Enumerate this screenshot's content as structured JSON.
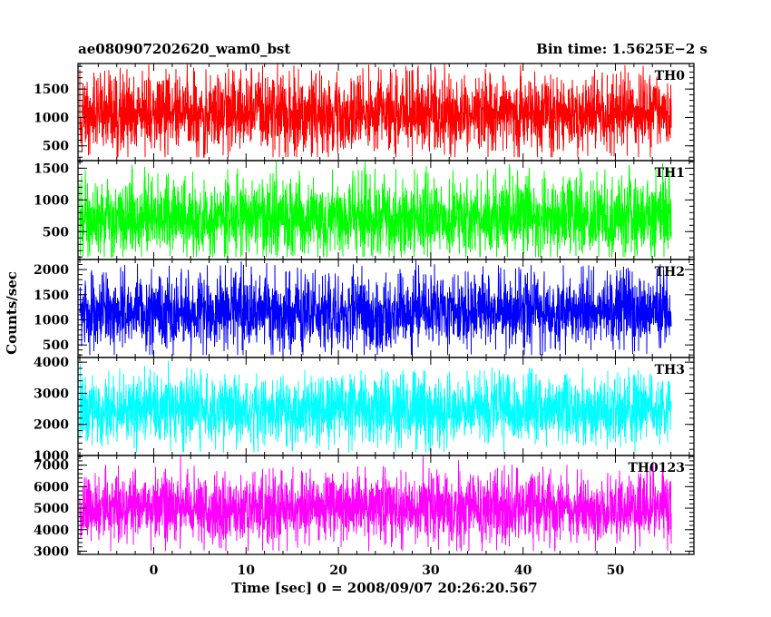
{
  "title_left": "ae080907202620_wam0_bst",
  "title_right": "Bin time: 1.5625E−2 s",
  "ylabel": "Counts/sec",
  "xlabel": "Time [sec] 0 = 2008/09/07 20:26:20.567",
  "chart_data": {
    "type": "line",
    "xlim": [
      -8.2,
      58.5
    ],
    "x_range_data": [
      -8,
      56
    ],
    "bin_time": 0.015625,
    "x_ticks": [
      0,
      10,
      20,
      30,
      40,
      50
    ],
    "x_tick_labels": [
      "0",
      "10",
      "20",
      "30",
      "40",
      "50"
    ],
    "panels": [
      {
        "name": "TH0",
        "color": "#ff0000",
        "ylim": [
          240,
          1950
        ],
        "y_ticks": [
          500,
          1000,
          1500
        ],
        "y_tick_labels": [
          "500",
          "1000",
          "1500"
        ],
        "mean": 1050,
        "spread": 300,
        "min": 300,
        "max": 1950
      },
      {
        "name": "TH1",
        "color": "#00ff00",
        "ylim": [
          60,
          1620
        ],
        "y_ticks": [
          500,
          1000,
          1500
        ],
        "y_tick_labels": [
          "500",
          "1000",
          "1500"
        ],
        "mean": 700,
        "spread": 280,
        "min": 100,
        "max": 1620
      },
      {
        "name": "TH2",
        "color": "#0000ff",
        "ylim": [
          250,
          2200
        ],
        "y_ticks": [
          500,
          1000,
          1500,
          2000
        ],
        "y_tick_labels": [
          "500",
          "1000",
          "1500",
          "2000"
        ],
        "mean": 1150,
        "spread": 330,
        "min": 300,
        "max": 2200
      },
      {
        "name": "TH3",
        "color": "#00ffff",
        "ylim": [
          1000,
          4150
        ],
        "y_ticks": [
          1000,
          2000,
          3000,
          4000
        ],
        "y_tick_labels": [
          "1000",
          "2000",
          "3000",
          "4000"
        ],
        "mean": 2450,
        "spread": 480,
        "min": 1100,
        "max": 4150
      },
      {
        "name": "TH0123",
        "color": "#ff00ff",
        "ylim": [
          2850,
          7450
        ],
        "y_ticks": [
          3000,
          4000,
          5000,
          6000,
          7000
        ],
        "y_tick_labels": [
          "3000",
          "4000",
          "5000",
          "6000",
          "7000"
        ],
        "mean": 4950,
        "spread": 720,
        "min": 3000,
        "max": 7450
      }
    ]
  }
}
